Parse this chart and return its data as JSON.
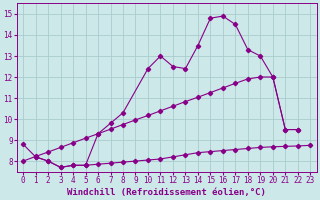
{
  "xlabel": "Windchill (Refroidissement éolien,°C)",
  "background_color": "#cce8e8",
  "grid_color": "#aacccc",
  "line_color": "#880088",
  "xlim": [
    -0.5,
    23.5
  ],
  "ylim": [
    7.5,
    15.5
  ],
  "xticks": [
    0,
    1,
    2,
    3,
    4,
    5,
    6,
    7,
    8,
    9,
    10,
    11,
    12,
    13,
    14,
    15,
    16,
    17,
    18,
    19,
    20,
    21,
    22,
    23
  ],
  "yticks": [
    8,
    9,
    10,
    11,
    12,
    13,
    14,
    15
  ],
  "line_a_x": [
    0,
    1,
    2,
    3,
    4,
    5,
    6,
    7,
    8,
    10,
    11,
    12,
    13,
    14,
    15,
    16,
    17,
    18,
    19,
    20,
    21,
    22
  ],
  "line_a_y": [
    8.8,
    8.2,
    8.0,
    7.7,
    7.8,
    7.8,
    9.3,
    9.8,
    10.3,
    12.4,
    13.0,
    12.5,
    12.4,
    13.5,
    14.8,
    14.9,
    14.5,
    13.3,
    13.0,
    12.0,
    9.5,
    9.5
  ],
  "line_b_x": [
    0,
    1,
    2,
    3,
    4,
    5,
    6,
    7,
    8,
    9,
    10,
    11,
    12,
    13,
    14,
    15,
    16,
    17,
    18,
    19,
    20,
    21,
    22
  ],
  "line_b_y": [
    8.0,
    8.22,
    8.43,
    8.65,
    8.87,
    9.09,
    9.3,
    9.52,
    9.74,
    9.96,
    10.17,
    10.39,
    10.61,
    10.83,
    11.04,
    11.26,
    11.48,
    11.7,
    11.91,
    12.0,
    12.0,
    9.5,
    9.5
  ],
  "line_c_x": [
    1,
    2,
    3,
    4,
    5,
    6,
    7,
    8,
    9,
    10,
    11,
    12,
    13,
    14,
    15,
    16,
    17,
    18,
    19,
    20,
    21,
    22,
    23
  ],
  "line_c_y": [
    8.2,
    8.0,
    7.7,
    7.8,
    7.8,
    7.85,
    7.9,
    7.95,
    8.0,
    8.05,
    8.1,
    8.2,
    8.3,
    8.4,
    8.45,
    8.5,
    8.55,
    8.6,
    8.65,
    8.68,
    8.7,
    8.72,
    8.75
  ],
  "font_size": 6.5,
  "marker_size": 2.2,
  "linewidth": 0.8
}
